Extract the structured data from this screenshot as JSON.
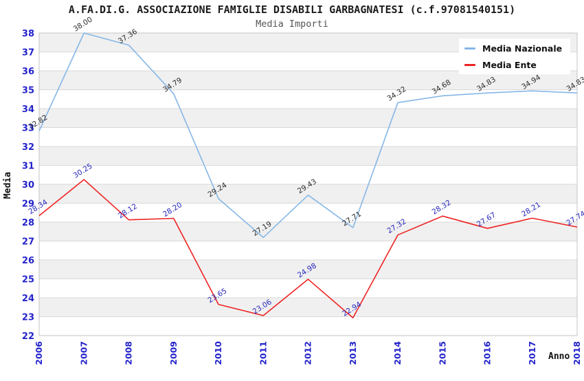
{
  "header": {
    "title": "A.FA.DI.G. ASSOCIAZIONE FAMIGLIE DISABILI GARBAGNATESI (c.f.97081540151)",
    "subtitle": "Media Importi"
  },
  "axes": {
    "x_label": "Anno",
    "y_label": "Media",
    "tick_color": "#2323cb"
  },
  "style": {
    "band_color": "#f0f0f0",
    "grid_color": "#d9d9d9",
    "border_color": "#c4c4c4",
    "plot_background": "#ffffff"
  },
  "chart_data": {
    "type": "line",
    "title": "A.FA.DI.G. ASSOCIAZIONE FAMIGLIE DISABILI GARBAGNATESI (c.f.97081540151)",
    "subtitle": "Media Importi",
    "xlabel": "Anno",
    "ylabel": "Media",
    "ylim": [
      22,
      38
    ],
    "ytick_step": 1,
    "grid": true,
    "legend_position": "top-right",
    "categories": [
      "2006",
      "2007",
      "2008",
      "2009",
      "2010",
      "2011",
      "2012",
      "2013",
      "2014",
      "2015",
      "2016",
      "2017",
      "2018"
    ],
    "series": [
      {
        "name": "Media Nazionale",
        "color": "#85b7e6",
        "label_color": "#2b2b2b",
        "values": [
          32.82,
          38.0,
          37.36,
          34.79,
          29.24,
          27.19,
          29.43,
          27.71,
          34.32,
          34.68,
          34.83,
          34.94,
          34.83
        ]
      },
      {
        "name": "Media Ente",
        "color": "#ee2222",
        "label_color": "#2424bd",
        "values": [
          28.34,
          30.25,
          28.12,
          28.2,
          23.65,
          23.06,
          24.98,
          22.94,
          27.32,
          28.32,
          27.67,
          28.21,
          27.74
        ]
      }
    ]
  }
}
